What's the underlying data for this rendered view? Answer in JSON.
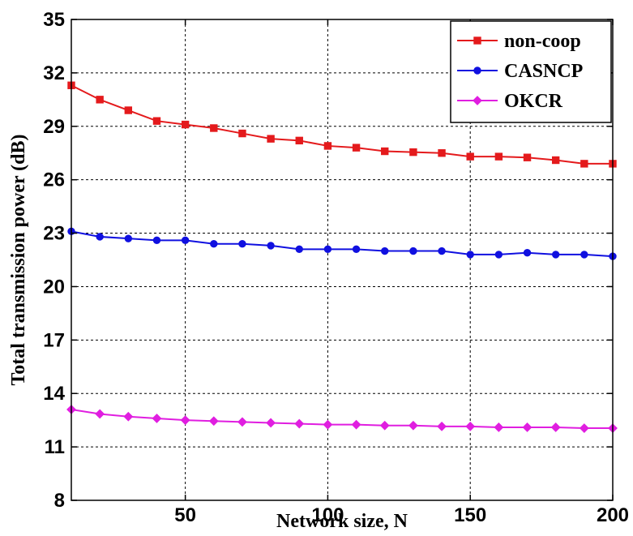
{
  "chart_data": {
    "type": "line",
    "xlabel": "Network size, N",
    "ylabel": "Total transmission power (dB)",
    "xlim": [
      10,
      200
    ],
    "ylim": [
      8,
      35
    ],
    "xticks": [
      50,
      100,
      150,
      200
    ],
    "yticks": [
      8,
      11,
      14,
      17,
      20,
      23,
      26,
      29,
      32,
      35
    ],
    "grid": true,
    "legend_position": "top-right",
    "x": [
      10,
      20,
      30,
      40,
      50,
      60,
      70,
      80,
      90,
      100,
      110,
      120,
      130,
      140,
      150,
      160,
      170,
      180,
      190,
      200
    ],
    "series": [
      {
        "name": "non-coop",
        "color": "#e41a1c",
        "marker": "square",
        "values": [
          31.3,
          30.5,
          29.9,
          29.3,
          29.1,
          28.9,
          28.6,
          28.3,
          28.2,
          27.9,
          27.8,
          27.6,
          27.55,
          27.5,
          27.3,
          27.3,
          27.25,
          27.1,
          26.9,
          26.9
        ]
      },
      {
        "name": "CASNCP",
        "color": "#1010e0",
        "marker": "circle",
        "values": [
          23.1,
          22.8,
          22.7,
          22.6,
          22.6,
          22.4,
          22.4,
          22.3,
          22.1,
          22.1,
          22.1,
          22.0,
          22.0,
          22.0,
          21.8,
          21.8,
          21.9,
          21.8,
          21.8,
          21.7
        ]
      },
      {
        "name": "OKCR",
        "color": "#e01ee0",
        "marker": "diamond",
        "values": [
          13.1,
          12.85,
          12.7,
          12.6,
          12.5,
          12.45,
          12.4,
          12.35,
          12.3,
          12.25,
          12.25,
          12.2,
          12.2,
          12.15,
          12.15,
          12.1,
          12.1,
          12.1,
          12.05,
          12.05
        ]
      }
    ]
  }
}
